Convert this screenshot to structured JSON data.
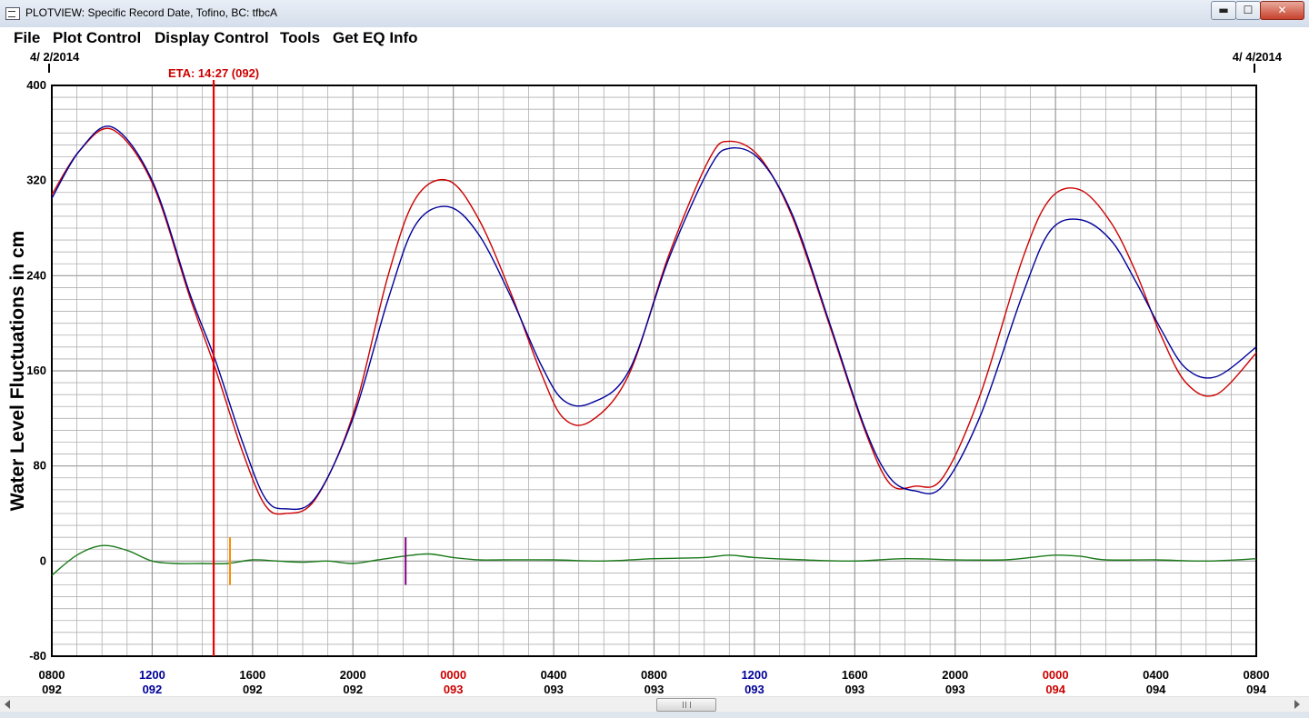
{
  "window": {
    "title": "PLOTVIEW: Specific Record Date, Tofino, BC: tfbcA",
    "min_symbol": "▬",
    "max_symbol": "☐",
    "close_symbol": "✕"
  },
  "menu": {
    "items": [
      "File",
      "Plot Control",
      "Display Control",
      "Tools",
      "Get EQ Info"
    ]
  },
  "colors": {
    "observed": "#cc0000",
    "predicted": "#000099",
    "residual": "#1a7a1a",
    "eta_line": "#ee0000",
    "grid": "#b0b0b0",
    "marker_orange": "#ff8c00",
    "marker_purple": "#800080",
    "label_default": "#000000",
    "label_noon": "#000099",
    "label_midnight": "#cc0000"
  },
  "chart_data": {
    "type": "line",
    "ylabel": "Water Level Fluctuations in cm",
    "ylim": [
      -80,
      400
    ],
    "yticks": [
      -80,
      0,
      80,
      160,
      240,
      320,
      400
    ],
    "xlim_hours": [
      8,
      56
    ],
    "grid": "on",
    "date_start": "4/ 2/2014",
    "date_end": "4/ 4/2014",
    "eta": {
      "label": "ETA: 14:27 (092)",
      "hour": 14.45
    },
    "markers": [
      {
        "name": "orange",
        "hour": 15.1,
        "ymin": -20,
        "ymax": 20
      },
      {
        "name": "purple",
        "hour": 22.1,
        "ymin": -20,
        "ymax": 20
      }
    ],
    "x_ticks": [
      {
        "time": "0800",
        "day": "092",
        "style": "default",
        "hour": 8
      },
      {
        "time": "1200",
        "day": "092",
        "style": "noon",
        "hour": 12
      },
      {
        "time": "1600",
        "day": "092",
        "style": "default",
        "hour": 16
      },
      {
        "time": "2000",
        "day": "092",
        "style": "default",
        "hour": 20
      },
      {
        "time": "0000",
        "day": "093",
        "style": "midnight",
        "hour": 24
      },
      {
        "time": "0400",
        "day": "093",
        "style": "default",
        "hour": 28
      },
      {
        "time": "0800",
        "day": "093",
        "style": "default",
        "hour": 32
      },
      {
        "time": "1200",
        "day": "093",
        "style": "noon",
        "hour": 36
      },
      {
        "time": "1600",
        "day": "093",
        "style": "default",
        "hour": 40
      },
      {
        "time": "2000",
        "day": "093",
        "style": "default",
        "hour": 44
      },
      {
        "time": "0000",
        "day": "094",
        "style": "midnight",
        "hour": 48
      },
      {
        "time": "0400",
        "day": "094",
        "style": "default",
        "hour": 52
      },
      {
        "time": "0800",
        "day": "094",
        "style": "default",
        "hour": 56
      }
    ],
    "series": [
      {
        "key": "predicted",
        "x": [
          8,
          9.1,
          10.4,
          12,
          13.5,
          14.5,
          15.6,
          16.5,
          17.3,
          18.5,
          20,
          21.4,
          22.5,
          23.8,
          25,
          26.3,
          27.5,
          28.4,
          29.5,
          31,
          32.6,
          34.2,
          35,
          36.2,
          37.5,
          39,
          40.4,
          41.4,
          42.4,
          43.5,
          45,
          46.7,
          47.8,
          49,
          50.2,
          51.2,
          52.2,
          53.2,
          54.4,
          56
        ],
        "values": [
          305,
          345,
          365,
          320,
          225,
          170,
          100,
          53,
          44,
          53,
          120,
          220,
          283,
          298,
          275,
          222,
          165,
          135,
          133,
          160,
          255,
          330,
          347,
          338,
          292,
          200,
          112,
          70,
          59,
          63,
          122,
          225,
          278,
          287,
          270,
          235,
          195,
          162,
          155,
          180
        ]
      },
      {
        "key": "observed",
        "x": [
          8,
          9.1,
          10.4,
          12,
          13.5,
          14.5,
          15.6,
          16.5,
          17.3,
          18.5,
          20,
          21.4,
          22.5,
          23.8,
          25,
          26.3,
          27.5,
          28.4,
          29.5,
          31,
          32.6,
          34.2,
          35,
          36.2,
          37.5,
          39,
          40.4,
          41.4,
          42.4,
          43.5,
          45,
          46.7,
          47.8,
          49,
          50.2,
          51.2,
          52.2,
          53.2,
          54.4,
          56
        ],
        "values": [
          308,
          345,
          363,
          318,
          222,
          163,
          92,
          47,
          40,
          52,
          123,
          240,
          305,
          320,
          288,
          225,
          158,
          120,
          118,
          157,
          258,
          338,
          353,
          340,
          290,
          198,
          110,
          65,
          63,
          70,
          140,
          255,
          305,
          312,
          285,
          243,
          190,
          150,
          140,
          175
        ]
      },
      {
        "key": "residual",
        "x": [
          8,
          9,
          10,
          11,
          12,
          13,
          14,
          15,
          16,
          17,
          18,
          19,
          20,
          21,
          22,
          23,
          24,
          25,
          26,
          28,
          30,
          32,
          34,
          35,
          36,
          38,
          40,
          42,
          44,
          46,
          47,
          48,
          49,
          50,
          52,
          54,
          56
        ],
        "values": [
          -12,
          5,
          13,
          9,
          0,
          -2,
          -2,
          -2,
          1,
          0,
          -1,
          0,
          -2,
          1,
          4,
          6,
          3,
          1,
          1,
          1,
          0,
          2,
          3,
          5,
          3,
          1,
          0,
          2,
          1,
          1,
          3,
          5,
          4,
          1,
          1,
          0,
          2
        ]
      }
    ]
  }
}
